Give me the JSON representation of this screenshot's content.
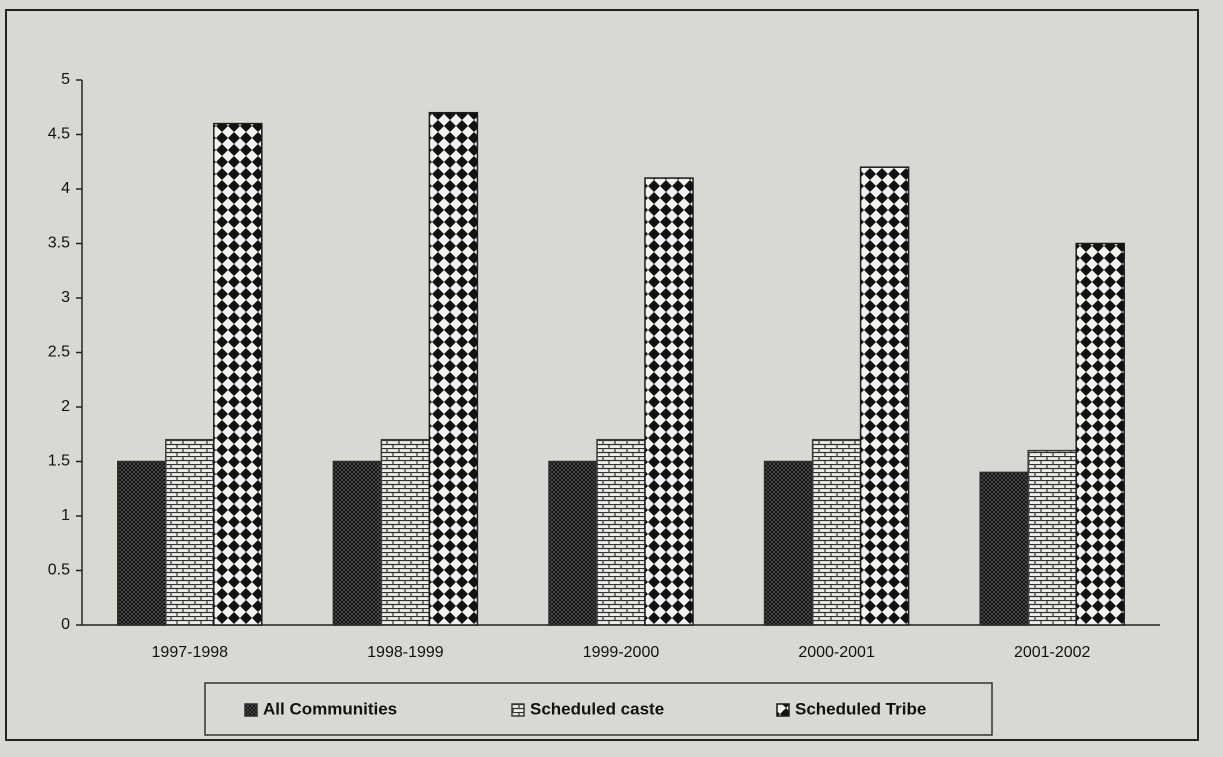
{
  "chart_data": {
    "type": "bar",
    "categories": [
      "1997-1998",
      "1998-1999",
      "1999-2000",
      "2000-2001",
      "2001-2002"
    ],
    "series": [
      {
        "name": "All Communities",
        "color": "#2a2a2a",
        "values": [
          1.5,
          1.5,
          1.5,
          1.5,
          1.4
        ]
      },
      {
        "name": "Scheduled caste",
        "color": "#3a3a3a",
        "values": [
          1.7,
          1.7,
          1.7,
          1.7,
          1.6
        ]
      },
      {
        "name": "Scheduled Tribe",
        "color": "#1a1a1a",
        "values": [
          4.6,
          4.7,
          4.1,
          4.2,
          3.5
        ]
      }
    ],
    "ylim": [
      0,
      5
    ],
    "yticks": [
      0,
      0.5,
      1,
      1.5,
      2,
      2.5,
      3,
      3.5,
      4,
      4.5,
      5
    ],
    "legend": "bottom"
  }
}
